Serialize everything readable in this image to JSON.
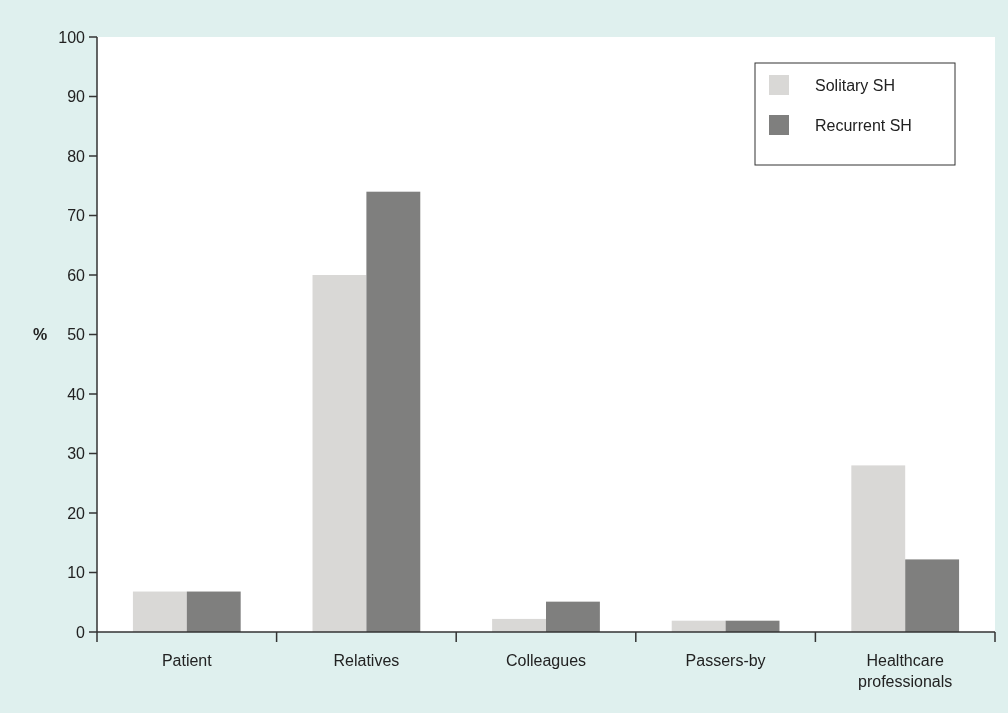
{
  "chart_data": {
    "type": "bar",
    "ylabel": "%",
    "categories": [
      "Patient",
      "Relatives",
      "Colleagues",
      "Passers-by",
      "Healthcare professionals"
    ],
    "series": [
      {
        "name": "Solitary SH",
        "color": "#d9d8d6",
        "values": [
          6.8,
          60,
          2.2,
          1.9,
          28
        ]
      },
      {
        "name": "Recurrent SH",
        "color": "#7f7f7e",
        "values": [
          6.8,
          74,
          5.1,
          1.9,
          12.2
        ]
      }
    ],
    "ylim": [
      0,
      100
    ],
    "yticks": [
      0,
      10,
      20,
      30,
      40,
      50,
      60,
      70,
      80,
      90,
      100
    ],
    "grid": false,
    "legend": "top right"
  }
}
